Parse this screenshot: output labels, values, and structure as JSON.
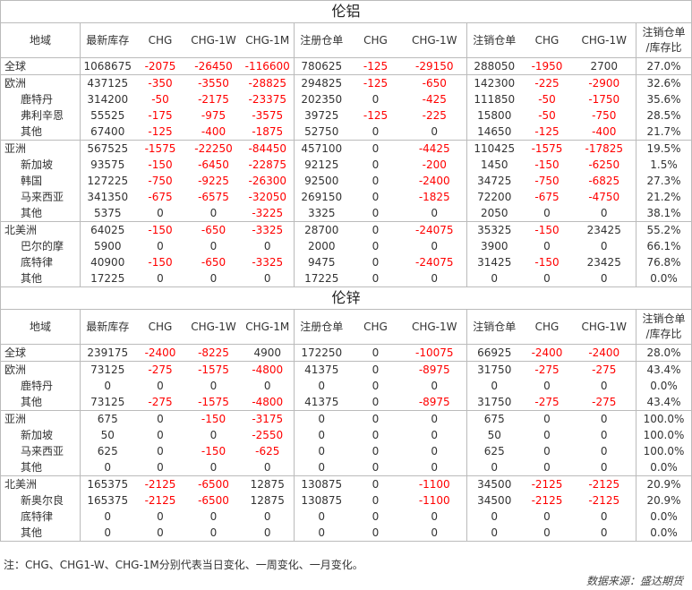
{
  "headers": [
    "地域",
    "最新库存",
    "CHG",
    "CHG-1W",
    "CHG-1M",
    "注册仓单",
    "CHG",
    "CHG-1W",
    "注销仓单",
    "CHG",
    "CHG-1W",
    "注销仓单/库存比"
  ],
  "ratio_header_line1": "注销仓单",
  "ratio_header_line2": "/库存比",
  "tables": [
    {
      "title": "伦铝",
      "groups": [
        [
          [
            "全球",
            "1068675",
            "-2075",
            "-26450",
            "-116600",
            "780625",
            "-125",
            "-29150",
            "288050",
            "-1950",
            "2700",
            "27.0%"
          ]
        ],
        [
          [
            "欧洲",
            "437125",
            "-350",
            "-3550",
            "-28825",
            "294825",
            "-125",
            "-650",
            "142300",
            "-225",
            "-2900",
            "32.6%"
          ],
          [
            "鹿特丹",
            "314200",
            "-50",
            "-2175",
            "-23375",
            "202350",
            "0",
            "-425",
            "111850",
            "-50",
            "-1750",
            "35.6%"
          ],
          [
            "弗利辛恩",
            "55525",
            "-175",
            "-975",
            "-3575",
            "39725",
            "-125",
            "-225",
            "15800",
            "-50",
            "-750",
            "28.5%"
          ],
          [
            "其他",
            "67400",
            "-125",
            "-400",
            "-1875",
            "52750",
            "0",
            "0",
            "14650",
            "-125",
            "-400",
            "21.7%"
          ]
        ],
        [
          [
            "亚洲",
            "567525",
            "-1575",
            "-22250",
            "-84450",
            "457100",
            "0",
            "-4425",
            "110425",
            "-1575",
            "-17825",
            "19.5%"
          ],
          [
            "新加坡",
            "93575",
            "-150",
            "-6450",
            "-22875",
            "92125",
            "0",
            "-200",
            "1450",
            "-150",
            "-6250",
            "1.5%"
          ],
          [
            "韩国",
            "127225",
            "-750",
            "-9225",
            "-26300",
            "92500",
            "0",
            "-2400",
            "34725",
            "-750",
            "-6825",
            "27.3%"
          ],
          [
            "马来西亚",
            "341350",
            "-675",
            "-6575",
            "-32050",
            "269150",
            "0",
            "-1825",
            "72200",
            "-675",
            "-4750",
            "21.2%"
          ],
          [
            "其他",
            "5375",
            "0",
            "0",
            "-3225",
            "3325",
            "0",
            "0",
            "2050",
            "0",
            "0",
            "38.1%"
          ]
        ],
        [
          [
            "北美洲",
            "64025",
            "-150",
            "-650",
            "-3325",
            "28700",
            "0",
            "-24075",
            "35325",
            "-150",
            "23425",
            "55.2%"
          ],
          [
            "巴尔的摩",
            "5900",
            "0",
            "0",
            "0",
            "2000",
            "0",
            "0",
            "3900",
            "0",
            "0",
            "66.1%"
          ],
          [
            "底特律",
            "40900",
            "-150",
            "-650",
            "-3325",
            "9475",
            "0",
            "-24075",
            "31425",
            "-150",
            "23425",
            "76.8%"
          ],
          [
            "其他",
            "17225",
            "0",
            "0",
            "0",
            "17225",
            "0",
            "0",
            "0",
            "0",
            "0",
            "0.0%"
          ]
        ]
      ]
    },
    {
      "title": "伦锌",
      "groups": [
        [
          [
            "全球",
            "239175",
            "-2400",
            "-8225",
            "4900",
            "172250",
            "0",
            "-10075",
            "66925",
            "-2400",
            "-2400",
            "28.0%"
          ]
        ],
        [
          [
            "欧洲",
            "73125",
            "-275",
            "-1575",
            "-4800",
            "41375",
            "0",
            "-8975",
            "31750",
            "-275",
            "-275",
            "43.4%"
          ],
          [
            "鹿特丹",
            "0",
            "0",
            "0",
            "0",
            "0",
            "0",
            "0",
            "0",
            "0",
            "0",
            "0.0%"
          ],
          [
            "其他",
            "73125",
            "-275",
            "-1575",
            "-4800",
            "41375",
            "0",
            "-8975",
            "31750",
            "-275",
            "-275",
            "43.4%"
          ]
        ],
        [
          [
            "亚洲",
            "675",
            "0",
            "-150",
            "-3175",
            "0",
            "0",
            "0",
            "675",
            "0",
            "0",
            "100.0%"
          ],
          [
            "新加坡",
            "50",
            "0",
            "0",
            "-2550",
            "0",
            "0",
            "0",
            "50",
            "0",
            "0",
            "100.0%"
          ],
          [
            "马来西亚",
            "625",
            "0",
            "-150",
            "-625",
            "0",
            "0",
            "0",
            "625",
            "0",
            "0",
            "100.0%"
          ],
          [
            "其他",
            "0",
            "0",
            "0",
            "0",
            "0",
            "0",
            "0",
            "0",
            "0",
            "0",
            "0.0%"
          ]
        ],
        [
          [
            "北美洲",
            "165375",
            "-2125",
            "-6500",
            "12875",
            "130875",
            "0",
            "-1100",
            "34500",
            "-2125",
            "-2125",
            "20.9%"
          ],
          [
            "新奥尔良",
            "165375",
            "-2125",
            "-6500",
            "12875",
            "130875",
            "0",
            "-1100",
            "34500",
            "-2125",
            "-2125",
            "20.9%"
          ],
          [
            "底特律",
            "0",
            "0",
            "0",
            "0",
            "0",
            "0",
            "0",
            "0",
            "0",
            "0",
            "0.0%"
          ],
          [
            "其他",
            "0",
            "0",
            "0",
            "0",
            "0",
            "0",
            "0",
            "0",
            "0",
            "0",
            "0.0%"
          ]
        ]
      ]
    }
  ],
  "note": "注：CHG、CHG1-W、CHG-1M分别代表当日变化、一周变化、一月变化。",
  "source": "数据来源：盛达期货",
  "colors": {
    "negative": "#ff0000",
    "text": "#333333",
    "border": "#bbbbbb"
  }
}
